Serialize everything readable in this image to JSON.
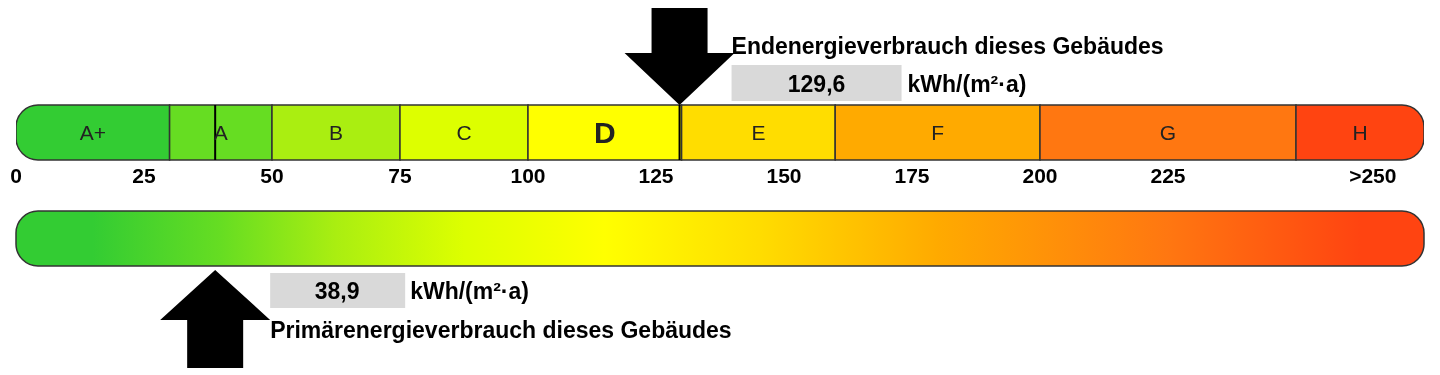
{
  "chart_data": {
    "type": "bar",
    "orientation": "horizontal",
    "stacked": true,
    "categories": [
      null
    ],
    "xlim": [
      0,
      275
    ],
    "xticks": [
      0,
      25,
      50,
      75,
      100,
      125,
      150,
      175,
      200,
      225,
      {
        "value": 265,
        "label": ">250"
      }
    ],
    "series": [
      {
        "name": "A+",
        "color": "#33cc33",
        "values": [
          30
        ]
      },
      {
        "name": "A",
        "color": "#66dd22",
        "values": [
          20
        ]
      },
      {
        "name": "B",
        "color": "#aaee11",
        "values": [
          25
        ]
      },
      {
        "name": "C",
        "color": "#ddff00",
        "values": [
          25
        ]
      },
      {
        "name": "D",
        "color": "#ffff00",
        "values": [
          30
        ]
      },
      {
        "name": "E",
        "color": "#ffdd00",
        "values": [
          30
        ]
      },
      {
        "name": "F",
        "color": "#ffaa00",
        "values": [
          40
        ]
      },
      {
        "name": "G",
        "color": "#ff7711",
        "values": [
          50
        ]
      },
      {
        "name": "H",
        "color": "#ff4411",
        "values": [
          25
        ]
      }
    ],
    "ref_lines": [
      {
        "axis": "x",
        "value": 129.6,
        "color": "#000000"
      },
      {
        "axis": "x",
        "value": 38.9,
        "color": "#000000"
      }
    ],
    "annotations": [
      "Endenergieverbrauch dieses Gebäudes",
      "129,6",
      "kWh/(m²·a)",
      "Primärenergieverbrauch dieses Gebäudes",
      "38,9",
      "kWh/(m²·a)"
    ]
  }
}
